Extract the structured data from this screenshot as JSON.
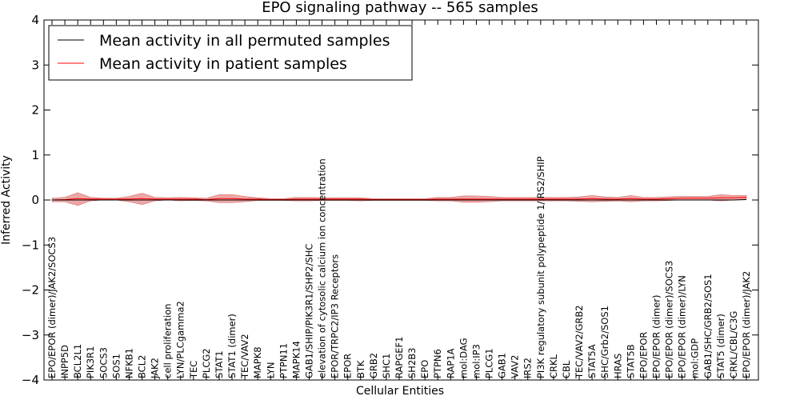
{
  "chart_data": {
    "type": "line",
    "title": "EPO signaling pathway -- 565 samples",
    "xlabel": "Cellular Entities",
    "ylabel": "Inferred Activity",
    "ylim": [
      -4,
      4
    ],
    "yticks": [
      -4,
      -3,
      -2,
      -1,
      0,
      1,
      2,
      3,
      4
    ],
    "ytick_labels": [
      "−4",
      "−3",
      "−2",
      "−1",
      "0",
      "1",
      "2",
      "3",
      "4"
    ],
    "legend_position": "top-left",
    "categories": [
      "EPO/EPOR (dimer)/JAK2/SOCS3",
      "INPP5D",
      "BCL2L1",
      "PIK3R1",
      "SOCS3",
      "SOS1",
      "NFKB1",
      "BCL2",
      "JAK2",
      "cell proliferation",
      "LYN/PLCgamma2",
      "TEC",
      "PLCG2",
      "STAT1",
      "STAT1 (dimer)",
      "TEC/VAV2",
      "MAPK8",
      "LYN",
      "PTPN11",
      "MAPK14",
      "GAB1/SHIP/PIK3R1/SHP2/SHC",
      "elevation of cytosolic calcium ion concentration",
      "EPOR/TRPC2/IP3 Receptors",
      "EPOR",
      "BTK",
      "GRB2",
      "SHC1",
      "RAPGEF1",
      "SH2B3",
      "EPO",
      "PTPN6",
      "RAP1A",
      "mol:DAG",
      "mol:IP3",
      "PLCG1",
      "GAB1",
      "VAV2",
      "IRS2",
      "PI3K regulatory subunit polypeptide 1/IRS2/SHIP",
      "CRKL",
      "CBL",
      "TEC/VAV2/GRB2",
      "STAT5A",
      "SHC/Grb2/SOS1",
      "HRAS",
      "STAT5B",
      "EPO/EPOR",
      "EPO/EPOR (dimer)",
      "EPO/EPOR (dimer)/SOCS3",
      "EPO/EPOR (dimer)/LYN",
      "mol:GDP",
      "GAB1/SHC/GRB2/SOS1",
      "STAT5 (dimer)",
      "CRKL/CBL/C3G",
      "EPO/EPOR (dimer)/JAK2"
    ],
    "series": [
      {
        "name": "Mean activity in all permuted samples",
        "color": "#000000",
        "values": [
          0.0,
          0.0,
          0.0,
          0.0,
          0.0,
          0.0,
          0.0,
          0.0,
          0.0,
          0.0,
          0.0,
          0.0,
          0.0,
          0.0,
          0.0,
          0.0,
          0.0,
          0.0,
          0.0,
          0.0,
          0.0,
          0.0,
          0.0,
          0.0,
          0.0,
          0.0,
          0.0,
          0.0,
          0.0,
          0.0,
          0.0,
          0.0,
          0.0,
          0.0,
          0.0,
          0.0,
          0.0,
          0.0,
          0.0,
          0.0,
          0.0,
          0.0,
          0.0,
          0.0,
          0.0,
          0.0,
          0.0,
          0.0,
          0.0,
          0.0,
          0.0,
          0.0,
          0.0,
          0.0,
          0.01
        ]
      },
      {
        "name": "Mean activity in patient samples",
        "color": "#ff0000",
        "values": [
          0.0,
          0.01,
          0.03,
          0.02,
          0.02,
          0.02,
          0.02,
          0.03,
          0.02,
          0.02,
          0.02,
          0.02,
          0.01,
          0.03,
          0.03,
          0.02,
          0.02,
          0.01,
          0.01,
          0.02,
          0.02,
          0.02,
          0.02,
          0.02,
          0.02,
          0.01,
          0.01,
          0.01,
          0.01,
          0.01,
          0.02,
          0.02,
          0.02,
          0.02,
          0.02,
          0.02,
          0.02,
          0.02,
          0.02,
          0.02,
          0.02,
          0.02,
          0.03,
          0.02,
          0.02,
          0.03,
          0.02,
          0.02,
          0.03,
          0.04,
          0.04,
          0.04,
          0.05,
          0.05,
          0.06
        ],
        "band_upper": [
          0.04,
          0.06,
          0.16,
          0.06,
          0.04,
          0.04,
          0.08,
          0.15,
          0.06,
          0.05,
          0.06,
          0.05,
          0.04,
          0.12,
          0.12,
          0.08,
          0.05,
          0.03,
          0.03,
          0.06,
          0.06,
          0.05,
          0.05,
          0.05,
          0.05,
          0.03,
          0.03,
          0.03,
          0.03,
          0.03,
          0.06,
          0.06,
          0.09,
          0.09,
          0.08,
          0.06,
          0.06,
          0.06,
          0.06,
          0.06,
          0.06,
          0.07,
          0.1,
          0.07,
          0.06,
          0.1,
          0.06,
          0.06,
          0.07,
          0.08,
          0.08,
          0.08,
          0.12,
          0.1,
          0.1
        ],
        "band_lower": [
          -0.04,
          -0.04,
          -0.12,
          -0.02,
          0.0,
          0.0,
          -0.04,
          -0.1,
          -0.02,
          0.0,
          -0.02,
          -0.01,
          -0.02,
          -0.06,
          -0.06,
          -0.04,
          -0.01,
          -0.01,
          -0.01,
          -0.02,
          -0.02,
          -0.01,
          -0.01,
          -0.01,
          -0.02,
          -0.01,
          -0.01,
          -0.01,
          -0.01,
          -0.01,
          -0.02,
          -0.02,
          -0.05,
          -0.05,
          -0.04,
          -0.02,
          -0.02,
          -0.02,
          -0.02,
          -0.02,
          -0.02,
          -0.03,
          -0.04,
          -0.03,
          -0.02,
          -0.04,
          -0.02,
          -0.02,
          -0.01,
          0.0,
          0.0,
          0.0,
          -0.02,
          0.0,
          0.02
        ]
      }
    ]
  }
}
